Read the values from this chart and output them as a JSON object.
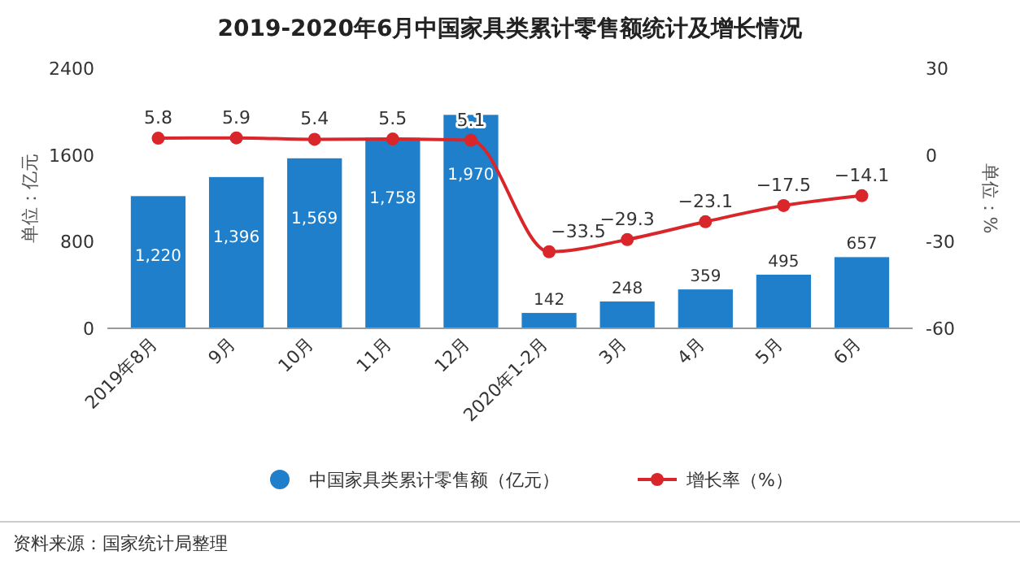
{
  "chart_data": {
    "type": "bar",
    "title": "2019-2020年6月中国家具类累计零售额统计及增长情况",
    "categories": [
      "2019年8月",
      "9月",
      "10月",
      "11月",
      "12月",
      "2020年1-2月",
      "3月",
      "4月",
      "5月",
      "6月"
    ],
    "series": [
      {
        "name": "中国家具类累计零售额（亿元）",
        "color": "#1f7fca",
        "values": [
          1220,
          1396,
          1569,
          1758,
          1970,
          142,
          248,
          359,
          495,
          657
        ],
        "value_labels": [
          "1,220",
          "1,396",
          "1,569",
          "1,758",
          "1,970",
          "142",
          "248",
          "359",
          "495",
          "657"
        ]
      },
      {
        "name": "增长率（%）",
        "type": "line",
        "axis": "y2",
        "color": "#d9262b",
        "marker": "circle",
        "values": [
          5.8,
          5.9,
          5.4,
          5.5,
          5.1,
          -33.5,
          -29.3,
          -23.1,
          -17.5,
          -14.1
        ],
        "value_labels": [
          "5.8",
          "5.9",
          "5.4",
          "5.5",
          "5.1",
          "−33.5",
          "−29.3",
          "−23.1",
          "−17.5",
          "−14.1"
        ]
      }
    ],
    "ylabel": "单位：亿元",
    "y2label": "单位：%",
    "ylim": [
      0,
      2400
    ],
    "yticks": [
      0,
      800,
      1600,
      2400
    ],
    "y2lim": [
      -60,
      30
    ],
    "y2ticks": [
      -60,
      -30,
      0,
      30
    ],
    "grid": false,
    "legend": "bottom",
    "annotations": [
      "资料来源：国家统计局整理"
    ]
  }
}
